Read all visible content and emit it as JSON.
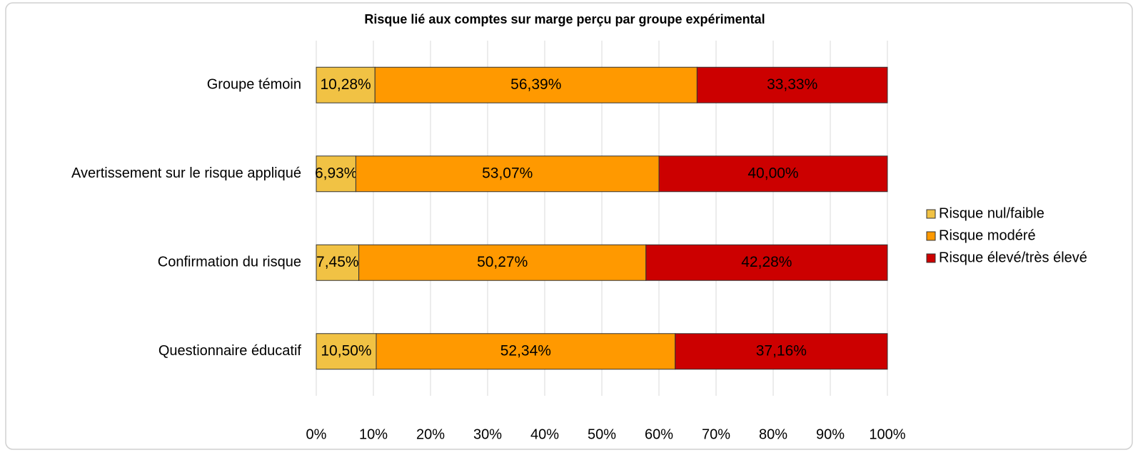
{
  "chart_data": {
    "type": "bar",
    "orientation": "horizontal",
    "stacked": true,
    "title": "Risque lié aux comptes sur marge perçu par groupe expérimental",
    "categories": [
      "Groupe témoin",
      "Avertissement sur le risque appliqué",
      "Confirmation du risque",
      "Questionnaire éducatif"
    ],
    "series": [
      {
        "name": "Risque nul/faible",
        "color": "#f1c244",
        "values": [
          10.28,
          6.93,
          7.45,
          10.5
        ],
        "value_labels": [
          "10,28%",
          "6,93%",
          "7,45%",
          "10,50%"
        ]
      },
      {
        "name": "Risque modéré",
        "color": "#ff9900",
        "values": [
          56.39,
          53.07,
          50.27,
          52.34
        ],
        "value_labels": [
          "56,39%",
          "53,07%",
          "50,27%",
          "52,34%"
        ]
      },
      {
        "name": "Risque élevé/très élevé",
        "color": "#cc0000",
        "values": [
          33.33,
          40.0,
          42.28,
          37.16
        ],
        "value_labels": [
          "33,33%",
          "40,00%",
          "42,28%",
          "37,16%"
        ]
      }
    ],
    "xlim": [
      0,
      100
    ],
    "xticks": [
      {
        "value": 0,
        "label": "0%"
      },
      {
        "value": 10,
        "label": "10%"
      },
      {
        "value": 20,
        "label": "20%"
      },
      {
        "value": 30,
        "label": "30%"
      },
      {
        "value": 40,
        "label": "40%"
      },
      {
        "value": 50,
        "label": "50%"
      },
      {
        "value": 60,
        "label": "60%"
      },
      {
        "value": 70,
        "label": "70%"
      },
      {
        "value": 80,
        "label": "80%"
      },
      {
        "value": 90,
        "label": "90%"
      },
      {
        "value": 100,
        "label": "100%"
      }
    ],
    "grid": true,
    "legend": "right"
  }
}
